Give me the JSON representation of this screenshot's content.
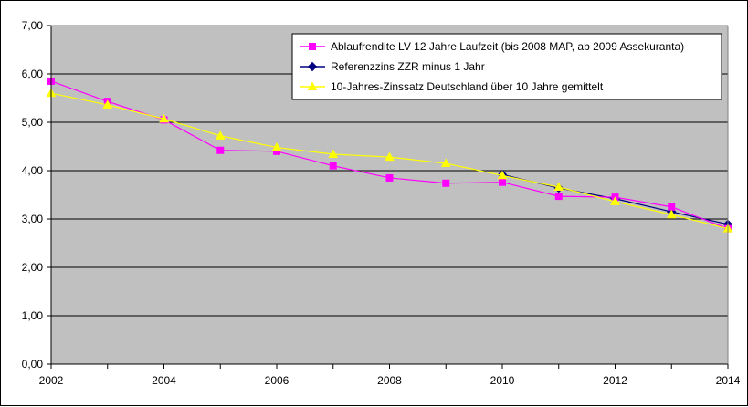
{
  "chart_data": {
    "type": "line",
    "title": "",
    "xlabel": "",
    "ylabel": "",
    "x": [
      2002,
      2003,
      2004,
      2005,
      2006,
      2007,
      2008,
      2009,
      2010,
      2011,
      2012,
      2013,
      2014
    ],
    "x_ticks": [
      "2002",
      "2004",
      "2006",
      "2008",
      "2010",
      "2012",
      "2014"
    ],
    "y_ticks": [
      "0,00",
      "1,00",
      "2,00",
      "3,00",
      "4,00",
      "5,00",
      "6,00",
      "7,00"
    ],
    "xlim": [
      2002,
      2014
    ],
    "ylim": [
      0,
      7
    ],
    "grid": "horizontal",
    "plot_background": "#c0c0c0",
    "legend_position": "top-right",
    "series": [
      {
        "name": "Ablaufrendite LV 12 Jahre Laufzeit (bis 2008 MAP, ab 2009 Assekuranta)",
        "color": "#ff00ff",
        "marker": "square",
        "x": [
          2002,
          2003,
          2004,
          2005,
          2006,
          2007,
          2008,
          2009,
          2010,
          2011,
          2012,
          2013,
          2014
        ],
        "values": [
          5.85,
          5.43,
          5.05,
          4.42,
          4.4,
          4.1,
          3.85,
          3.74,
          3.76,
          3.47,
          3.45,
          3.25,
          2.8
        ]
      },
      {
        "name": "Referenzzins ZZR minus 1 Jahr",
        "color": "#000080",
        "marker": "diamond",
        "x": [
          2010,
          2011,
          2012,
          2013,
          2014
        ],
        "values": [
          3.92,
          3.64,
          3.42,
          3.15,
          2.89
        ]
      },
      {
        "name": "10-Jahres-Zinssatz Deutschland über 10 Jahre gemittelt",
        "color": "#ffff00",
        "marker": "triangle",
        "x": [
          2002,
          2003,
          2004,
          2005,
          2006,
          2007,
          2008,
          2009,
          2010,
          2011,
          2012,
          2013,
          2014
        ],
        "values": [
          5.6,
          5.36,
          5.07,
          4.72,
          4.48,
          4.34,
          4.28,
          4.15,
          3.9,
          3.66,
          3.36,
          3.09,
          2.8
        ]
      }
    ]
  }
}
